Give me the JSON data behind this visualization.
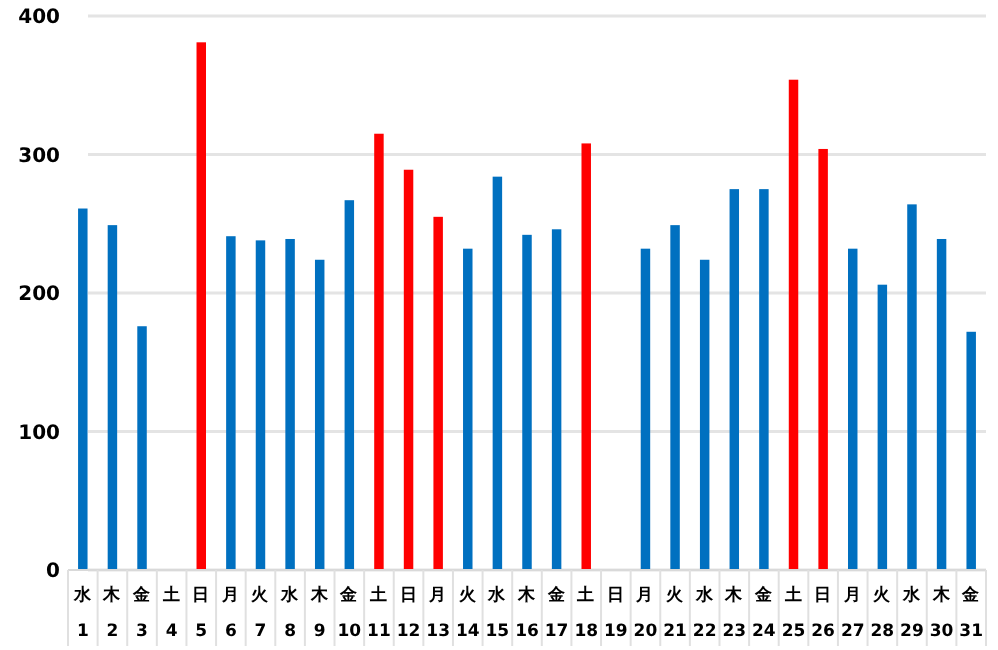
{
  "chart_data": {
    "type": "bar",
    "categories": [
      "水\n1",
      "木\n2",
      "金\n3",
      "土\n4",
      "日\n5",
      "月\n6",
      "火\n7",
      "水\n8",
      "木\n9",
      "金\n10",
      "土\n11",
      "日\n12",
      "月\n13",
      "火\n14",
      "水\n15",
      "木\n16",
      "金\n17",
      "土\n18",
      "日\n19",
      "月\n20",
      "火\n21",
      "水\n22",
      "木\n23",
      "金\n24",
      "土\n25",
      "日\n26",
      "月\n27",
      "火\n28",
      "水\n29",
      "木\n30",
      "金\n31"
    ],
    "values": [
      261,
      249,
      176,
      null,
      381,
      241,
      238,
      239,
      224,
      267,
      315,
      289,
      255,
      232,
      284,
      242,
      246,
      308,
      null,
      232,
      249,
      224,
      275,
      275,
      354,
      304,
      232,
      206,
      264,
      239,
      172
    ],
    "colors": [
      "#0070c0",
      "#0070c0",
      "#0070c0",
      null,
      "#ff0000",
      "#0070c0",
      "#0070c0",
      "#0070c0",
      "#0070c0",
      "#0070c0",
      "#ff0000",
      "#ff0000",
      "#ff0000",
      "#0070c0",
      "#0070c0",
      "#0070c0",
      "#0070c0",
      "#ff0000",
      null,
      "#0070c0",
      "#0070c0",
      "#0070c0",
      "#0070c0",
      "#0070c0",
      "#ff0000",
      "#ff0000",
      "#0070c0",
      "#0070c0",
      "#0070c0",
      "#0070c0",
      "#0070c0"
    ],
    "ylim": [
      0,
      400
    ],
    "yticks": [
      0,
      100,
      200,
      300,
      400
    ],
    "grid": "y"
  }
}
